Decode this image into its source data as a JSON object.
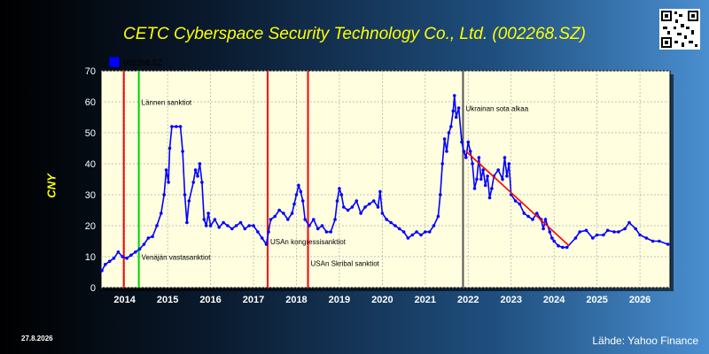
{
  "title": "CETC Cyberspace Security Technology Co., Ltd. (002268.SZ)",
  "date_label": "27.8.2026",
  "source_label": "Lähde: Yahoo Finance",
  "colors": {
    "series": "#0000ff",
    "event_red": "#ff0000",
    "event_green": "#00d000",
    "event_gray": "#555555",
    "trend": "#ff0000",
    "plot_bg": "#ffffe0"
  },
  "chart_data": {
    "type": "line",
    "ylabel": "CNY",
    "ylim": [
      0,
      70
    ],
    "yticks": [
      0,
      10,
      20,
      30,
      40,
      50,
      60,
      70
    ],
    "xlim": [
      2013.45,
      2026.7
    ],
    "xticks": [
      2014,
      2015,
      2016,
      2017,
      2018,
      2019,
      2020,
      2021,
      2022,
      2023,
      2024,
      2025,
      2026
    ],
    "grid": true,
    "legend": {
      "position": "top-left",
      "entries": [
        "002268.SZ"
      ]
    },
    "series": [
      {
        "name": "002268.SZ",
        "points": [
          [
            2013.47,
            5.5
          ],
          [
            2013.55,
            7.5
          ],
          [
            2013.65,
            8.5
          ],
          [
            2013.75,
            9.5
          ],
          [
            2013.85,
            11.5
          ],
          [
            2013.95,
            10
          ],
          [
            2014.05,
            9.5
          ],
          [
            2014.15,
            10.5
          ],
          [
            2014.25,
            11.5
          ],
          [
            2014.35,
            12.5
          ],
          [
            2014.45,
            14
          ],
          [
            2014.55,
            16
          ],
          [
            2014.65,
            16.5
          ],
          [
            2014.75,
            20
          ],
          [
            2014.85,
            24
          ],
          [
            2014.92,
            30
          ],
          [
            2014.97,
            38
          ],
          [
            2015.02,
            34
          ],
          [
            2015.05,
            45
          ],
          [
            2015.1,
            52
          ],
          [
            2015.2,
            52
          ],
          [
            2015.3,
            52
          ],
          [
            2015.35,
            44
          ],
          [
            2015.4,
            30
          ],
          [
            2015.45,
            21
          ],
          [
            2015.5,
            28
          ],
          [
            2015.6,
            34
          ],
          [
            2015.65,
            38
          ],
          [
            2015.7,
            36
          ],
          [
            2015.75,
            40
          ],
          [
            2015.8,
            34
          ],
          [
            2015.85,
            22
          ],
          [
            2015.9,
            20
          ],
          [
            2015.95,
            24
          ],
          [
            2016.0,
            20
          ],
          [
            2016.1,
            22
          ],
          [
            2016.2,
            19.5
          ],
          [
            2016.3,
            21
          ],
          [
            2016.4,
            20
          ],
          [
            2016.5,
            19
          ],
          [
            2016.6,
            20
          ],
          [
            2016.7,
            21
          ],
          [
            2016.8,
            19
          ],
          [
            2016.9,
            20
          ],
          [
            2017.0,
            20
          ],
          [
            2017.1,
            18
          ],
          [
            2017.2,
            16
          ],
          [
            2017.3,
            14
          ],
          [
            2017.35,
            18
          ],
          [
            2017.4,
            22
          ],
          [
            2017.5,
            23
          ],
          [
            2017.6,
            25
          ],
          [
            2017.7,
            24
          ],
          [
            2017.8,
            22
          ],
          [
            2017.9,
            24
          ],
          [
            2017.95,
            27
          ],
          [
            2018.0,
            30
          ],
          [
            2018.05,
            33
          ],
          [
            2018.1,
            31
          ],
          [
            2018.15,
            28
          ],
          [
            2018.2,
            22
          ],
          [
            2018.3,
            20
          ],
          [
            2018.4,
            22
          ],
          [
            2018.5,
            19
          ],
          [
            2018.6,
            20
          ],
          [
            2018.7,
            18
          ],
          [
            2018.8,
            18
          ],
          [
            2018.9,
            22
          ],
          [
            2018.95,
            28
          ],
          [
            2019.0,
            32
          ],
          [
            2019.05,
            30
          ],
          [
            2019.1,
            26
          ],
          [
            2019.2,
            25
          ],
          [
            2019.3,
            26
          ],
          [
            2019.4,
            28
          ],
          [
            2019.5,
            24
          ],
          [
            2019.6,
            26
          ],
          [
            2019.7,
            27
          ],
          [
            2019.8,
            28
          ],
          [
            2019.9,
            26
          ],
          [
            2019.95,
            31
          ],
          [
            2020.0,
            24
          ],
          [
            2020.1,
            22
          ],
          [
            2020.2,
            21
          ],
          [
            2020.3,
            20
          ],
          [
            2020.4,
            19
          ],
          [
            2020.5,
            18
          ],
          [
            2020.6,
            16
          ],
          [
            2020.7,
            17
          ],
          [
            2020.8,
            18
          ],
          [
            2020.9,
            17
          ],
          [
            2021.0,
            18
          ],
          [
            2021.1,
            18
          ],
          [
            2021.2,
            20
          ],
          [
            2021.3,
            23
          ],
          [
            2021.35,
            30
          ],
          [
            2021.4,
            40
          ],
          [
            2021.45,
            48
          ],
          [
            2021.5,
            44
          ],
          [
            2021.55,
            50
          ],
          [
            2021.6,
            52
          ],
          [
            2021.65,
            57
          ],
          [
            2021.68,
            62
          ],
          [
            2021.72,
            55
          ],
          [
            2021.78,
            58
          ],
          [
            2021.85,
            47
          ],
          [
            2021.9,
            44
          ],
          [
            2021.95,
            42
          ],
          [
            2022.0,
            47
          ],
          [
            2022.05,
            44
          ],
          [
            2022.1,
            40
          ],
          [
            2022.15,
            32
          ],
          [
            2022.2,
            35
          ],
          [
            2022.25,
            42
          ],
          [
            2022.3,
            35
          ],
          [
            2022.35,
            38
          ],
          [
            2022.4,
            33
          ],
          [
            2022.45,
            36
          ],
          [
            2022.5,
            29
          ],
          [
            2022.55,
            32
          ],
          [
            2022.6,
            36
          ],
          [
            2022.7,
            38
          ],
          [
            2022.8,
            35
          ],
          [
            2022.85,
            42
          ],
          [
            2022.9,
            36
          ],
          [
            2022.95,
            40
          ],
          [
            2023.0,
            30
          ],
          [
            2023.1,
            28
          ],
          [
            2023.2,
            27
          ],
          [
            2023.3,
            24
          ],
          [
            2023.4,
            23
          ],
          [
            2023.5,
            22
          ],
          [
            2023.6,
            24
          ],
          [
            2023.7,
            22
          ],
          [
            2023.75,
            19
          ],
          [
            2023.8,
            22
          ],
          [
            2023.9,
            18
          ],
          [
            2023.95,
            16
          ],
          [
            2024.0,
            15
          ],
          [
            2024.1,
            13.5
          ],
          [
            2024.2,
            13
          ],
          [
            2024.3,
            13
          ],
          [
            2024.5,
            16
          ],
          [
            2024.6,
            18
          ],
          [
            2024.75,
            18.5
          ],
          [
            2024.9,
            16
          ],
          [
            2025.0,
            17
          ],
          [
            2025.15,
            17
          ],
          [
            2025.25,
            18.5
          ],
          [
            2025.4,
            18
          ],
          [
            2025.5,
            18
          ],
          [
            2025.65,
            19
          ],
          [
            2025.75,
            21
          ],
          [
            2025.9,
            19
          ],
          [
            2026.0,
            17
          ],
          [
            2026.15,
            16
          ],
          [
            2026.3,
            15
          ],
          [
            2026.45,
            15
          ],
          [
            2026.65,
            14
          ]
        ]
      }
    ],
    "trendline": [
      [
        2021.95,
        44
      ],
      [
        2024.35,
        13.5
      ]
    ],
    "events": [
      {
        "x": 2013.98,
        "color": "red",
        "label": ""
      },
      {
        "x": 2014.33,
        "color": "green",
        "label": "Venäjän vastasanktiot",
        "label_y": 9
      },
      {
        "x": 2014.33,
        "color": "green",
        "label": "Lännen sanktiot",
        "label_y": 59
      },
      {
        "x": 2017.33,
        "color": "red",
        "label": "USAn kongressisanktiot",
        "label_y": 14
      },
      {
        "x": 2018.27,
        "color": "red",
        "label": "USAn Skribal sanktiot",
        "label_y": 7
      },
      {
        "x": 2021.88,
        "color": "gray",
        "label": "Ukrainan sota alkaa",
        "label_y": 57
      }
    ]
  }
}
